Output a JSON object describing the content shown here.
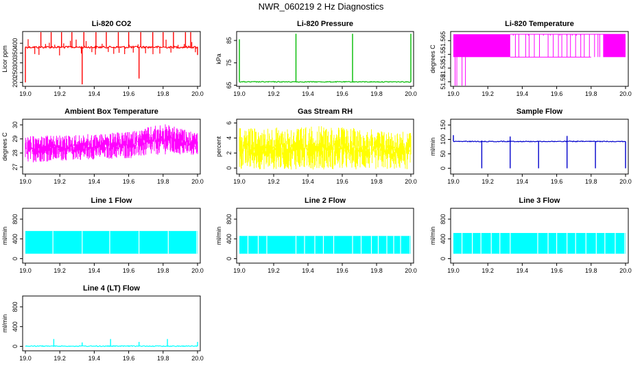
{
  "page": {
    "title": "NWR_060219  2 Hz Diagnostics"
  },
  "chart_data": [
    {
      "type": "line",
      "title": "Li-820 CO2",
      "ylabel": "Licor ppm",
      "color": "#ff0000",
      "xlim": [
        19.0,
        20.0
      ],
      "ylim": [
        180,
        460
      ],
      "xticks": [
        "19.0",
        "19.2",
        "19.4",
        "19.6",
        "19.8",
        "20.0"
      ],
      "yticks": [
        {
          "v": 200,
          "label": "200"
        },
        {
          "v": 250,
          "label": "250"
        },
        {
          "v": 300,
          "label": "300"
        },
        {
          "v": 350,
          "label": "350"
        },
        {
          "v": 400,
          "label": "400"
        }
      ],
      "pattern": "co2",
      "baseline": 380,
      "spikes": [
        [
          19.0,
          200
        ],
        [
          19.09,
          460
        ],
        [
          19.15,
          460
        ],
        [
          19.21,
          460
        ],
        [
          19.27,
          460
        ],
        [
          19.33,
          190
        ],
        [
          19.34,
          460
        ],
        [
          19.41,
          460
        ],
        [
          19.47,
          460
        ],
        [
          19.54,
          460
        ],
        [
          19.6,
          460
        ],
        [
          19.66,
          220
        ],
        [
          19.67,
          460
        ],
        [
          19.74,
          460
        ],
        [
          19.8,
          460
        ],
        [
          19.86,
          460
        ],
        [
          19.93,
          460
        ],
        [
          19.96,
          460
        ],
        [
          20.0,
          340
        ]
      ]
    },
    {
      "type": "line",
      "title": "Li-820 Pressure",
      "ylabel": "kPa",
      "color": "#00bb00",
      "xlim": [
        19.0,
        20.0
      ],
      "ylim": [
        64.5,
        89
      ],
      "xticks": [
        "19.0",
        "19.2",
        "19.4",
        "19.6",
        "19.8",
        "20.0"
      ],
      "yticks": [
        {
          "v": 65,
          "label": "65"
        },
        {
          "v": 75,
          "label": "75"
        },
        {
          "v": 85,
          "label": "85"
        }
      ],
      "pattern": "pressure",
      "baseline": 66.5,
      "spikes": [
        [
          19.0,
          85.5
        ],
        [
          19.33,
          88
        ],
        [
          19.66,
          88
        ],
        [
          20.0,
          88
        ]
      ]
    },
    {
      "type": "line",
      "title": "Li-820 Temperature",
      "ylabel": "degrees C",
      "color": "#ff00ff",
      "xlim": [
        19.0,
        20.0
      ],
      "ylim": [
        51.515,
        51.575
      ],
      "xticks": [
        "19.0",
        "19.2",
        "19.4",
        "19.6",
        "19.8",
        "20.0"
      ],
      "yticks": [
        {
          "v": 51.52,
          "label": "51.52"
        },
        {
          "v": 51.535,
          "label": "51.535"
        },
        {
          "v": 51.55,
          "label": "51.55"
        },
        {
          "v": 51.565,
          "label": "51.565"
        }
      ],
      "pattern": "temperature",
      "low": 51.547,
      "high": 51.572
    },
    {
      "type": "line",
      "title": "Ambient Box Temperature",
      "ylabel": "degrees C",
      "color": "#ff00ff",
      "xlim": [
        19.0,
        20.0
      ],
      "ylim": [
        26.5,
        30.4
      ],
      "xticks": [
        "19.0",
        "19.2",
        "19.4",
        "19.6",
        "19.8",
        "20.0"
      ],
      "yticks": [
        {
          "v": 27,
          "label": "27"
        },
        {
          "v": 28,
          "label": "28"
        },
        {
          "v": 29,
          "label": "29"
        },
        {
          "v": 30,
          "label": "30"
        }
      ],
      "pattern": "band",
      "band": [
        [
          19.0,
          27.3,
          29.2
        ],
        [
          19.3,
          27.5,
          29.3
        ],
        [
          19.6,
          27.6,
          29.5
        ],
        [
          19.8,
          27.9,
          30.1
        ],
        [
          20.0,
          27.8,
          29.4
        ]
      ]
    },
    {
      "type": "line",
      "title": "Gas Stream RH",
      "ylabel": "percent",
      "color": "#ffff00",
      "xlim": [
        19.0,
        20.0
      ],
      "ylim": [
        -0.8,
        6.5
      ],
      "xticks": [
        "19.0",
        "19.2",
        "19.4",
        "19.6",
        "19.8",
        "20.0"
      ],
      "yticks": [
        {
          "v": 0,
          "label": "0"
        },
        {
          "v": 2,
          "label": "2"
        },
        {
          "v": 4,
          "label": "4"
        },
        {
          "v": 6,
          "label": "6"
        }
      ],
      "pattern": "band",
      "band": [
        [
          19.0,
          -0.2,
          5.3
        ],
        [
          19.5,
          -0.2,
          5.6
        ],
        [
          20.0,
          -0.2,
          4.8
        ]
      ]
    },
    {
      "type": "line",
      "title": "Sample Flow",
      "ylabel": "ml/min",
      "color": "#0000cc",
      "xlim": [
        19.0,
        20.0
      ],
      "ylim": [
        -20,
        170
      ],
      "xticks": [
        "19.0",
        "19.2",
        "19.4",
        "19.6",
        "19.8",
        "20.0"
      ],
      "yticks": [
        {
          "v": 0,
          "label": "0"
        },
        {
          "v": 50,
          "label": "50"
        },
        {
          "v": 100,
          "label": "100"
        },
        {
          "v": 150,
          "label": "150"
        }
      ],
      "pattern": "flow",
      "baseline": 93,
      "spikes": [
        [
          19.0,
          115
        ],
        [
          19.165,
          0
        ],
        [
          19.33,
          0
        ],
        [
          19.33,
          110
        ],
        [
          19.495,
          0
        ],
        [
          19.66,
          0
        ],
        [
          19.66,
          112
        ],
        [
          19.825,
          0
        ],
        [
          20.0,
          0
        ]
      ]
    },
    {
      "type": "line",
      "title": "Line 1 Flow",
      "ylabel": "ml/min",
      "color": "#00ffff",
      "xlim": [
        19.0,
        20.0
      ],
      "ylim": [
        -90,
        1020
      ],
      "xticks": [
        "19.0",
        "19.2",
        "19.4",
        "19.6",
        "19.8",
        "20.0"
      ],
      "yticks": [
        {
          "v": 0,
          "label": "0"
        },
        {
          "v": 400,
          "label": "400"
        },
        {
          "v": 800,
          "label": "800"
        }
      ],
      "pattern": "block",
      "low": 100,
      "high": 560,
      "gaps": [
        19.16,
        19.33,
        19.49,
        19.66,
        19.83,
        19.995
      ]
    },
    {
      "type": "line",
      "title": "Line 2 Flow",
      "ylabel": "ml/min",
      "color": "#00ffff",
      "xlim": [
        19.0,
        20.0
      ],
      "ylim": [
        -90,
        1020
      ],
      "xticks": [
        "19.0",
        "19.2",
        "19.4",
        "19.6",
        "19.8",
        "20.0"
      ],
      "yticks": [
        {
          "v": 0,
          "label": "0"
        },
        {
          "v": 400,
          "label": "400"
        },
        {
          "v": 800,
          "label": "800"
        }
      ],
      "pattern": "block",
      "low": 100,
      "high": 460,
      "gaps": [
        19.05,
        19.11,
        19.16,
        19.33,
        19.38,
        19.44,
        19.49,
        19.55,
        19.66,
        19.71,
        19.77,
        19.81,
        19.86,
        19.9,
        19.94,
        19.995
      ]
    },
    {
      "type": "line",
      "title": "Line 3 Flow",
      "ylabel": "ml/min",
      "color": "#00ffff",
      "xlim": [
        19.0,
        20.0
      ],
      "ylim": [
        -90,
        1020
      ],
      "xticks": [
        "19.0",
        "19.2",
        "19.4",
        "19.6",
        "19.8",
        "20.0"
      ],
      "yticks": [
        {
          "v": 0,
          "label": "0"
        },
        {
          "v": 400,
          "label": "400"
        },
        {
          "v": 800,
          "label": "800"
        }
      ],
      "pattern": "block",
      "low": 100,
      "high": 520,
      "gaps": [
        19.05,
        19.11,
        19.16,
        19.22,
        19.27,
        19.33,
        19.49,
        19.55,
        19.6,
        19.66,
        19.71,
        19.77,
        19.83,
        19.88,
        19.94,
        19.995
      ]
    },
    {
      "type": "line",
      "title": "Line 4 (LT) Flow",
      "ylabel": "ml/min",
      "color": "#00ffff",
      "xlim": [
        19.0,
        20.0
      ],
      "ylim": [
        -90,
        1020
      ],
      "xticks": [
        "19.0",
        "19.2",
        "19.4",
        "19.6",
        "19.8",
        "20.0"
      ],
      "yticks": [
        {
          "v": 0,
          "label": "0"
        },
        {
          "v": 400,
          "label": "400"
        },
        {
          "v": 800,
          "label": "800"
        }
      ],
      "pattern": "flow",
      "baseline": 5,
      "spikes": [
        [
          19.165,
          150
        ],
        [
          19.33,
          80
        ],
        [
          19.495,
          150
        ],
        [
          19.66,
          90
        ],
        [
          19.825,
          150
        ],
        [
          20.0,
          90
        ]
      ]
    }
  ]
}
